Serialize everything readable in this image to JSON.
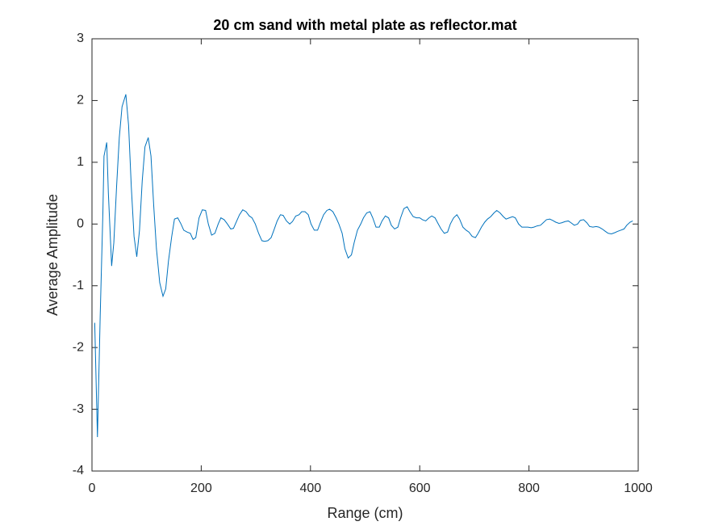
{
  "chart_data": {
    "type": "line",
    "title": "20 cm sand with metal plate as reflector.mat",
    "xlabel": "Range (cm)",
    "ylabel": "Average Amplitude",
    "xlim": [
      0,
      1000
    ],
    "ylim": [
      -4,
      3
    ],
    "xticks": [
      0,
      200,
      400,
      600,
      800,
      1000
    ],
    "yticks": [
      -4,
      -3,
      -2,
      -1,
      0,
      1,
      2,
      3
    ],
    "grid": false,
    "x": [
      5,
      10,
      15,
      20,
      22,
      27,
      30,
      36,
      40,
      45,
      50,
      55,
      62,
      67,
      72,
      77,
      82,
      87,
      92,
      97,
      103,
      108,
      113,
      118,
      124,
      130,
      135,
      140,
      146,
      151,
      157,
      163,
      168,
      174,
      180,
      185,
      190,
      196,
      202,
      208,
      213,
      219,
      225,
      231,
      236,
      242,
      248,
      254,
      259,
      265,
      270,
      276,
      282,
      288,
      293,
      299,
      305,
      311,
      316,
      322,
      328,
      333,
      339,
      345,
      350,
      356,
      362,
      367,
      373,
      379,
      384,
      390,
      396,
      401,
      407,
      413,
      418,
      424,
      430,
      435,
      441,
      447,
      452,
      458,
      463,
      469,
      475,
      480,
      486,
      492,
      497,
      503,
      509,
      514,
      520,
      526,
      531,
      537,
      543,
      548,
      554,
      560,
      565,
      571,
      577,
      582,
      588,
      594,
      600,
      605,
      611,
      617,
      622,
      628,
      634,
      639,
      645,
      651,
      656,
      662,
      668,
      673,
      679,
      685,
      690,
      696,
      702,
      707,
      713,
      719,
      724,
      730,
      736,
      741,
      747,
      753,
      758,
      764,
      770,
      775,
      781,
      787,
      792,
      798,
      804,
      809,
      815,
      821,
      826,
      832,
      838,
      843,
      849,
      855,
      860,
      866,
      872,
      877,
      883,
      889,
      894,
      900,
      906,
      911,
      917,
      923,
      928,
      934,
      940,
      945,
      951,
      957,
      962,
      968,
      974,
      979,
      985,
      990
    ],
    "series": [
      {
        "name": "Average Amplitude",
        "color": "#0072bd",
        "values": [
          -1.6,
          -3.45,
          -1.5,
          0.2,
          1.1,
          1.32,
          0.5,
          -0.68,
          -0.3,
          0.6,
          1.4,
          1.9,
          2.1,
          1.6,
          0.6,
          -0.2,
          -0.53,
          -0.1,
          0.7,
          1.25,
          1.4,
          1.1,
          0.3,
          -0.4,
          -0.95,
          -1.17,
          -1.05,
          -0.6,
          -0.2,
          0.08,
          0.1,
          0.0,
          -0.1,
          -0.13,
          -0.15,
          -0.25,
          -0.22,
          0.1,
          0.23,
          0.22,
          0.0,
          -0.18,
          -0.15,
          0.0,
          0.1,
          0.07,
          0.0,
          -0.08,
          -0.07,
          0.05,
          0.15,
          0.23,
          0.2,
          0.13,
          0.1,
          0.0,
          -0.15,
          -0.27,
          -0.28,
          -0.27,
          -0.22,
          -0.1,
          0.05,
          0.15,
          0.14,
          0.05,
          0.0,
          0.04,
          0.13,
          0.15,
          0.2,
          0.2,
          0.15,
          0.0,
          -0.1,
          -0.1,
          0.02,
          0.15,
          0.22,
          0.24,
          0.2,
          0.1,
          0.0,
          -0.15,
          -0.4,
          -0.55,
          -0.5,
          -0.3,
          -0.1,
          0.0,
          0.1,
          0.18,
          0.2,
          0.1,
          -0.05,
          -0.05,
          0.05,
          0.13,
          0.1,
          -0.02,
          -0.08,
          -0.05,
          0.1,
          0.25,
          0.28,
          0.2,
          0.12,
          0.1,
          0.1,
          0.07,
          0.05,
          0.1,
          0.13,
          0.1,
          0.0,
          -0.08,
          -0.15,
          -0.13,
          0.0,
          0.1,
          0.15,
          0.08,
          -0.05,
          -0.1,
          -0.13,
          -0.2,
          -0.22,
          -0.15,
          -0.05,
          0.03,
          0.08,
          0.12,
          0.18,
          0.22,
          0.18,
          0.12,
          0.08,
          0.1,
          0.12,
          0.1,
          0.0,
          -0.05,
          -0.05,
          -0.05,
          -0.06,
          -0.05,
          -0.03,
          -0.02,
          0.02,
          0.07,
          0.08,
          0.06,
          0.03,
          0.01,
          0.02,
          0.04,
          0.05,
          0.02,
          -0.02,
          0.0,
          0.06,
          0.07,
          0.02,
          -0.04,
          -0.05,
          -0.04,
          -0.05,
          -0.08,
          -0.12,
          -0.15,
          -0.16,
          -0.14,
          -0.12,
          -0.1,
          -0.08,
          -0.02,
          0.03,
          0.05
        ]
      }
    ]
  }
}
